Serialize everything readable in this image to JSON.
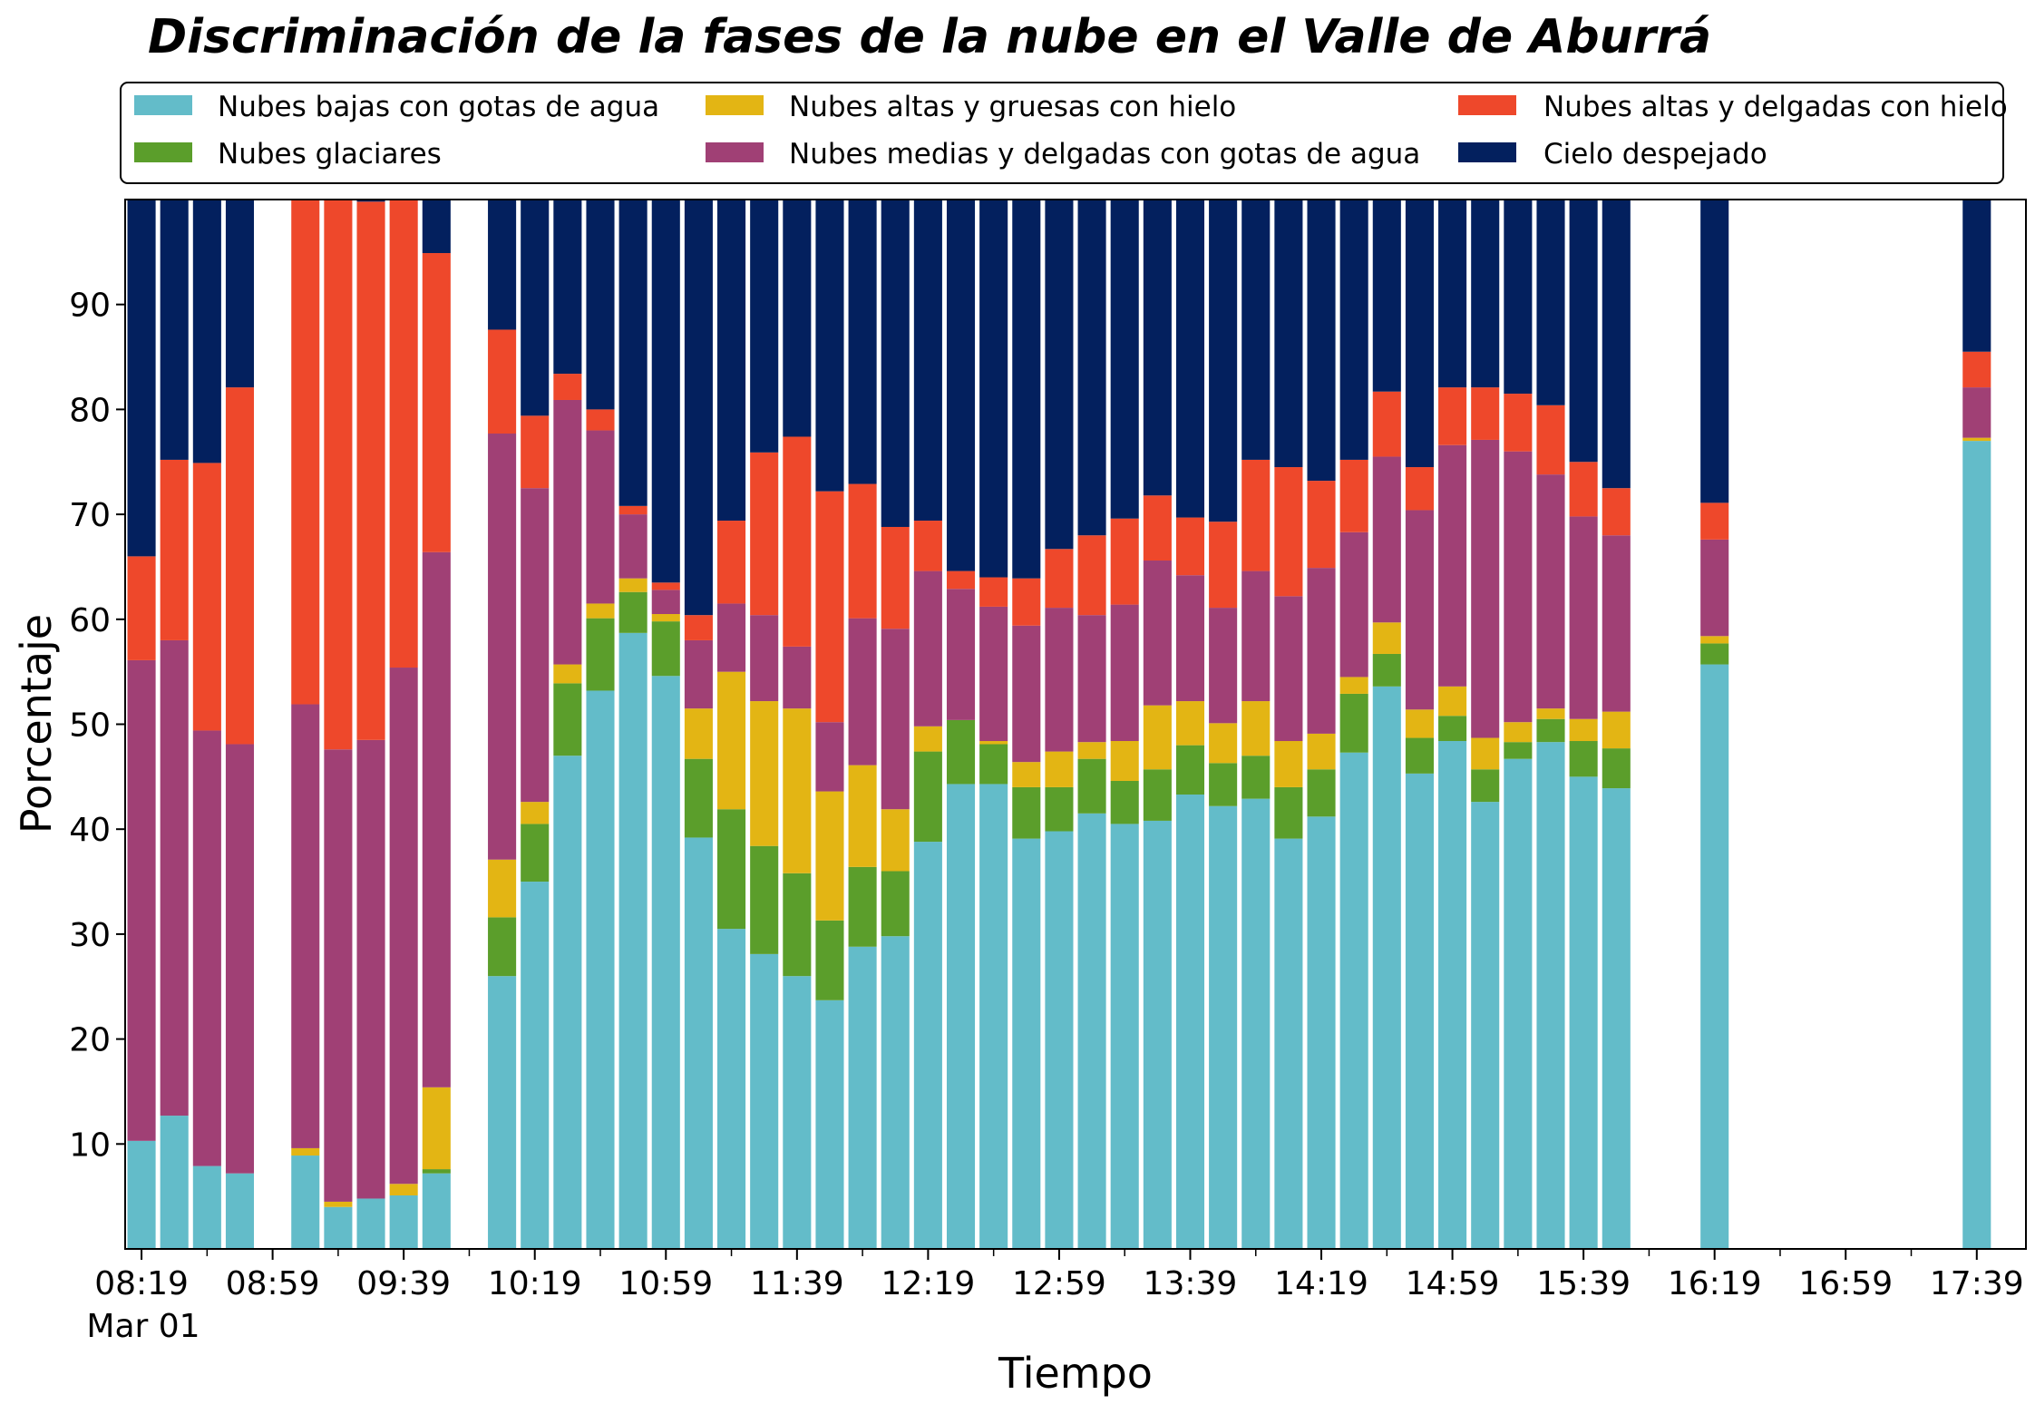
{
  "chart_data": {
    "type": "bar",
    "stacked": true,
    "title": "Discriminación de la fases de la nube en el Valle de Aburrá",
    "xlabel": "Tiempo",
    "ylabel": "Porcentaje",
    "ylim": [
      0,
      100
    ],
    "yticks": [
      10,
      20,
      30,
      40,
      50,
      60,
      70,
      80,
      90
    ],
    "x_tick_labels": [
      "08:19",
      "08:59",
      "09:39",
      "10:19",
      "10:59",
      "11:39",
      "12:19",
      "12:59",
      "13:39",
      "14:19",
      "14:59",
      "15:39",
      "16:19",
      "16:59",
      "17:39"
    ],
    "x_date_label": "Mar 01",
    "x_start": "08:14",
    "x_end": "17:54",
    "bar_interval_minutes": 10,
    "legend_position": "top",
    "grid": false,
    "colors": {
      "low_water": "#63BCC9",
      "glaciated": "#5B9E2B",
      "high_thick_ice": "#E3B514",
      "mid_thin_water": "#A04075",
      "high_thin_ice": "#EE482B",
      "clear": "#03205E"
    },
    "series": [
      {
        "key": "low_water",
        "name": "Nubes bajas con gotas de agua"
      },
      {
        "key": "glaciated",
        "name": "Nubes glaciares"
      },
      {
        "key": "high_thick_ice",
        "name": "Nubes altas y gruesas con hielo"
      },
      {
        "key": "mid_thin_water",
        "name": "Nubes medias y delgadas con gotas de agua"
      },
      {
        "key": "high_thin_ice",
        "name": "Nubes altas y delgadas con hielo"
      },
      {
        "key": "clear",
        "name": "Cielo despejado"
      }
    ],
    "legend_order": [
      "low_water",
      "glaciated",
      "high_thick_ice",
      "mid_thin_water",
      "high_thin_ice",
      "clear"
    ],
    "bars": [
      {
        "time": "08:19",
        "low_water": 10.3,
        "glaciated": 0,
        "high_thick_ice": 0,
        "mid_thin_water": 45.8,
        "high_thin_ice": 9.9,
        "clear": 34.0
      },
      {
        "time": "08:29",
        "low_water": 12.7,
        "glaciated": 0,
        "high_thick_ice": 0,
        "mid_thin_water": 45.3,
        "high_thin_ice": 17.2,
        "clear": 24.8
      },
      {
        "time": "08:39",
        "low_water": 7.9,
        "glaciated": 0,
        "high_thick_ice": 0,
        "mid_thin_water": 41.5,
        "high_thin_ice": 25.5,
        "clear": 25.1
      },
      {
        "time": "08:49",
        "low_water": 7.2,
        "glaciated": 0,
        "high_thick_ice": 0,
        "mid_thin_water": 40.9,
        "high_thin_ice": 34.0,
        "clear": 17.9
      },
      {
        "time": "09:09",
        "low_water": 8.9,
        "glaciated": 0,
        "high_thick_ice": 0.7,
        "mid_thin_water": 42.3,
        "high_thin_ice": 48.1,
        "clear": 0
      },
      {
        "time": "09:19",
        "low_water": 4.0,
        "glaciated": 0,
        "high_thick_ice": 0.5,
        "mid_thin_water": 43.1,
        "high_thin_ice": 52.4,
        "clear": 0
      },
      {
        "time": "09:29",
        "low_water": 4.8,
        "glaciated": 0,
        "high_thick_ice": 0,
        "mid_thin_water": 43.7,
        "high_thin_ice": 51.3,
        "clear": 0.2
      },
      {
        "time": "09:39",
        "low_water": 5.1,
        "glaciated": 0,
        "high_thick_ice": 1.1,
        "mid_thin_water": 49.2,
        "high_thin_ice": 44.6,
        "clear": 0
      },
      {
        "time": "09:49",
        "low_water": 7.2,
        "glaciated": 0.4,
        "high_thick_ice": 7.8,
        "mid_thin_water": 51.0,
        "high_thin_ice": 28.5,
        "clear": 5.1
      },
      {
        "time": "10:09",
        "low_water": 26.0,
        "glaciated": 5.6,
        "high_thick_ice": 5.5,
        "mid_thin_water": 40.6,
        "high_thin_ice": 9.9,
        "clear": 12.4
      },
      {
        "time": "10:19",
        "low_water": 35.0,
        "glaciated": 5.5,
        "high_thick_ice": 2.1,
        "mid_thin_water": 29.9,
        "high_thin_ice": 6.9,
        "clear": 20.6
      },
      {
        "time": "10:29",
        "low_water": 47.0,
        "glaciated": 6.9,
        "high_thick_ice": 1.8,
        "mid_thin_water": 25.2,
        "high_thin_ice": 2.5,
        "clear": 16.6
      },
      {
        "time": "10:39",
        "low_water": 53.2,
        "glaciated": 6.9,
        "high_thick_ice": 1.4,
        "mid_thin_water": 16.5,
        "high_thin_ice": 2.0,
        "clear": 20.0
      },
      {
        "time": "10:49",
        "low_water": 58.7,
        "glaciated": 3.9,
        "high_thick_ice": 1.3,
        "mid_thin_water": 6.1,
        "high_thin_ice": 0.8,
        "clear": 29.2
      },
      {
        "time": "10:59",
        "low_water": 54.6,
        "glaciated": 5.2,
        "high_thick_ice": 0.7,
        "mid_thin_water": 2.3,
        "high_thin_ice": 0.7,
        "clear": 36.5
      },
      {
        "time": "11:09",
        "low_water": 39.2,
        "glaciated": 7.5,
        "high_thick_ice": 4.8,
        "mid_thin_water": 6.5,
        "high_thin_ice": 2.4,
        "clear": 39.6
      },
      {
        "time": "11:19",
        "low_water": 30.5,
        "glaciated": 11.4,
        "high_thick_ice": 13.1,
        "mid_thin_water": 6.5,
        "high_thin_ice": 7.9,
        "clear": 30.6
      },
      {
        "time": "11:29",
        "low_water": 28.1,
        "glaciated": 10.3,
        "high_thick_ice": 13.8,
        "mid_thin_water": 8.2,
        "high_thin_ice": 15.5,
        "clear": 24.1
      },
      {
        "time": "11:39",
        "low_water": 26.0,
        "glaciated": 9.8,
        "high_thick_ice": 15.7,
        "mid_thin_water": 5.9,
        "high_thin_ice": 20.0,
        "clear": 22.6
      },
      {
        "time": "11:49",
        "low_water": 23.7,
        "glaciated": 7.6,
        "high_thick_ice": 12.3,
        "mid_thin_water": 6.6,
        "high_thin_ice": 22.0,
        "clear": 27.8
      },
      {
        "time": "11:59",
        "low_water": 28.8,
        "glaciated": 7.6,
        "high_thick_ice": 9.7,
        "mid_thin_water": 14.0,
        "high_thin_ice": 12.8,
        "clear": 27.1
      },
      {
        "time": "12:09",
        "low_water": 29.8,
        "glaciated": 6.2,
        "high_thick_ice": 5.9,
        "mid_thin_water": 17.2,
        "high_thin_ice": 9.7,
        "clear": 31.2
      },
      {
        "time": "12:19",
        "low_water": 38.8,
        "glaciated": 8.6,
        "high_thick_ice": 2.4,
        "mid_thin_water": 14.8,
        "high_thin_ice": 4.8,
        "clear": 30.6
      },
      {
        "time": "12:29",
        "low_water": 44.3,
        "glaciated": 6.1,
        "high_thick_ice": 0,
        "mid_thin_water": 12.5,
        "high_thin_ice": 1.7,
        "clear": 35.4
      },
      {
        "time": "12:39",
        "low_water": 44.3,
        "glaciated": 3.8,
        "high_thick_ice": 0.3,
        "mid_thin_water": 12.8,
        "high_thin_ice": 2.8,
        "clear": 36.0
      },
      {
        "time": "12:49",
        "low_water": 39.1,
        "glaciated": 4.9,
        "high_thick_ice": 2.4,
        "mid_thin_water": 13.0,
        "high_thin_ice": 4.5,
        "clear": 36.1
      },
      {
        "time": "12:59",
        "low_water": 39.8,
        "glaciated": 4.2,
        "high_thick_ice": 3.4,
        "mid_thin_water": 13.7,
        "high_thin_ice": 5.6,
        "clear": 33.3
      },
      {
        "time": "13:09",
        "low_water": 41.5,
        "glaciated": 5.2,
        "high_thick_ice": 1.6,
        "mid_thin_water": 12.1,
        "high_thin_ice": 7.6,
        "clear": 32.0
      },
      {
        "time": "13:19",
        "low_water": 40.5,
        "glaciated": 4.1,
        "high_thick_ice": 3.8,
        "mid_thin_water": 13.0,
        "high_thin_ice": 8.2,
        "clear": 30.4
      },
      {
        "time": "13:29",
        "low_water": 40.8,
        "glaciated": 4.9,
        "high_thick_ice": 6.1,
        "mid_thin_water": 13.8,
        "high_thin_ice": 6.2,
        "clear": 28.2
      },
      {
        "time": "13:39",
        "low_water": 43.3,
        "glaciated": 4.7,
        "high_thick_ice": 4.2,
        "mid_thin_water": 12.0,
        "high_thin_ice": 5.5,
        "clear": 30.3
      },
      {
        "time": "13:49",
        "low_water": 42.2,
        "glaciated": 4.1,
        "high_thick_ice": 3.8,
        "mid_thin_water": 11.0,
        "high_thin_ice": 8.2,
        "clear": 30.7
      },
      {
        "time": "13:59",
        "low_water": 42.9,
        "glaciated": 4.1,
        "high_thick_ice": 5.2,
        "mid_thin_water": 12.4,
        "high_thin_ice": 10.6,
        "clear": 24.8
      },
      {
        "time": "14:09",
        "low_water": 39.1,
        "glaciated": 4.9,
        "high_thick_ice": 4.4,
        "mid_thin_water": 13.8,
        "high_thin_ice": 12.3,
        "clear": 25.5
      },
      {
        "time": "14:19",
        "low_water": 41.2,
        "glaciated": 4.5,
        "high_thick_ice": 3.4,
        "mid_thin_water": 15.8,
        "high_thin_ice": 8.3,
        "clear": 26.8
      },
      {
        "time": "14:29",
        "low_water": 47.3,
        "glaciated": 5.6,
        "high_thick_ice": 1.6,
        "mid_thin_water": 13.8,
        "high_thin_ice": 6.9,
        "clear": 24.8
      },
      {
        "time": "14:39",
        "low_water": 53.6,
        "glaciated": 3.1,
        "high_thick_ice": 3.0,
        "mid_thin_water": 15.8,
        "high_thin_ice": 6.2,
        "clear": 18.3
      },
      {
        "time": "14:49",
        "low_water": 45.3,
        "glaciated": 3.4,
        "high_thick_ice": 2.7,
        "mid_thin_water": 19.0,
        "high_thin_ice": 4.1,
        "clear": 25.5
      },
      {
        "time": "14:59",
        "low_water": 48.4,
        "glaciated": 2.4,
        "high_thick_ice": 2.8,
        "mid_thin_water": 23.0,
        "high_thin_ice": 5.5,
        "clear": 17.9
      },
      {
        "time": "15:09",
        "low_water": 42.6,
        "glaciated": 3.1,
        "high_thick_ice": 3.0,
        "mid_thin_water": 28.4,
        "high_thin_ice": 5.0,
        "clear": 17.9
      },
      {
        "time": "15:19",
        "low_water": 46.7,
        "glaciated": 1.6,
        "high_thick_ice": 1.9,
        "mid_thin_water": 25.8,
        "high_thin_ice": 5.5,
        "clear": 18.5
      },
      {
        "time": "15:29",
        "low_water": 48.3,
        "glaciated": 2.2,
        "high_thick_ice": 1.0,
        "mid_thin_water": 22.3,
        "high_thin_ice": 6.6,
        "clear": 19.6
      },
      {
        "time": "15:39",
        "low_water": 45.0,
        "glaciated": 3.4,
        "high_thick_ice": 2.1,
        "mid_thin_water": 19.3,
        "high_thin_ice": 5.2,
        "clear": 25.0
      },
      {
        "time": "15:49",
        "low_water": 43.9,
        "glaciated": 3.8,
        "high_thick_ice": 3.5,
        "mid_thin_water": 16.8,
        "high_thin_ice": 4.5,
        "clear": 27.5
      },
      {
        "time": "16:19",
        "low_water": 55.7,
        "glaciated": 2.0,
        "high_thick_ice": 0.7,
        "mid_thin_water": 9.2,
        "high_thin_ice": 3.5,
        "clear": 28.9
      },
      {
        "time": "17:39",
        "low_water": 77.0,
        "glaciated": 0,
        "high_thick_ice": 0.3,
        "mid_thin_water": 4.8,
        "high_thin_ice": 3.4,
        "clear": 14.5
      }
    ]
  }
}
